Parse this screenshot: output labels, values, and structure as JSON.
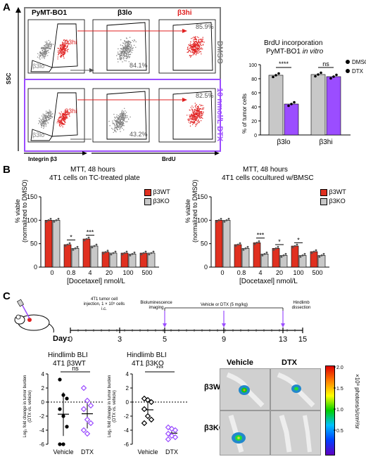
{
  "panelA": {
    "letter": "A",
    "column_titles": [
      "PyMT-BO1",
      "β3lo",
      "β3hi"
    ],
    "row_labels": [
      "DMSO",
      "10 nmol/L DTX"
    ],
    "y_axis": "SSC",
    "x_axis_left": "Integrin β3",
    "x_axis_right": "BrdU",
    "gate_hi": "β3hi",
    "gate_lo": "β3lo",
    "pct": {
      "dmso_lo": "84.1%",
      "dmso_hi": "85.9%",
      "dtx_lo": "43.2%",
      "dtx_hi": "82.5%"
    },
    "colors": {
      "dmso_frame": "#7f7f7f",
      "dtx_frame": "#9b4dff",
      "hi_red": "#e02020",
      "lo_gray": "#808080"
    }
  },
  "brdu_chart": {
    "title1": "BrdU incorporation",
    "title2": "PyMT-BO1",
    "title3": "in vitro",
    "ylabel": "% of tumor cells",
    "legend": [
      "DMSO",
      "DTX"
    ],
    "sig": [
      "****",
      "ns"
    ]
  },
  "panelB": {
    "letter": "B",
    "left_title1": "MTT, 48 hours",
    "left_title2": "4T1 cells on TC-treated plate",
    "right_title1": "MTT, 48 hours",
    "right_title2": "4T1 cells cocultured w/BMSC",
    "ylabel1": "% viable",
    "ylabel2": "(normalized to DMSO)",
    "xlabel": "[Docetaxel] nmol/L",
    "legend": [
      "β3WT",
      "β3KO"
    ],
    "left_sig": [
      "*",
      "***"
    ],
    "right_sig": [
      "***",
      "*",
      "*"
    ]
  },
  "panelC": {
    "letter": "C",
    "timeline": {
      "day_label": "Day:",
      "days": [
        "0",
        "3",
        "5",
        "9",
        "13",
        "15"
      ],
      "ev_injection": "4T1 tumor cell injection, 1 × 10⁵ cells i.c.",
      "ev_imaging": "Bioluminescence imaging",
      "ev_treatment": "Vehicle or DTX (5 mg/kg)",
      "ev_dissection": "Hindlimb dissection"
    },
    "wt_plot": {
      "title1": "Hindlimb BLI",
      "title2": "4T1 β3WT",
      "sig": "ns",
      "ylabel": "Log₂ fold change in tumor burden (DTX vs. vehicle)",
      "xticks": [
        "Vehicle",
        "DTX"
      ]
    },
    "ko_plot": {
      "title1": "Hindlimb BLI",
      "title2": "4T1 β3KO",
      "sig": "***",
      "ylabel": "Log₂ fold change in tumor burden (DTX vs. vehicle)",
      "xticks": [
        "Vehicle",
        "DTX"
      ]
    },
    "images": {
      "col_vehicle": "Vehicle",
      "col_dtx": "DTX",
      "row_wt": "β3WT",
      "row_ko": "β3KO"
    },
    "colorbar": {
      "label": "×10⁸ photons/s/cm²/sr",
      "ticks": [
        "2.0",
        "1.5",
        "1.0",
        "0.5"
      ]
    }
  },
  "chart_data": [
    {
      "type": "bar",
      "title": "BrdU incorporation PyMT-BO1 in vitro",
      "ylabel": "% of tumor cells",
      "categories": [
        "β3lo",
        "β3hi"
      ],
      "series": [
        {
          "name": "DMSO",
          "values": [
            85,
            86
          ]
        },
        {
          "name": "DTX",
          "values": [
            44,
            83
          ]
        }
      ],
      "ylim": [
        0,
        100
      ],
      "yticks": [
        "0",
        "20",
        "40",
        "60",
        "80",
        "100"
      ],
      "colors": [
        "#c8c8c8",
        "#9b4dff"
      ]
    },
    {
      "type": "bar",
      "title": "MTT, 48 hours 4T1 cells on TC-treated plate",
      "xlabel": "[Docetaxel] nmol/L",
      "ylabel": "% viable (normalized to DMSO)",
      "categories": [
        "0",
        "0.8",
        "4",
        "20",
        "100",
        "500"
      ],
      "series": [
        {
          "name": "β3WT",
          "values": [
            100,
            48,
            60,
            32,
            30,
            30
          ]
        },
        {
          "name": "β3KO",
          "values": [
            100,
            40,
            45,
            30,
            28,
            30
          ]
        }
      ],
      "ylim": [
        0,
        150
      ],
      "yticks": [
        "0",
        "50",
        "100",
        "150"
      ],
      "colors": [
        "#e03020",
        "#c8c8c8"
      ]
    },
    {
      "type": "bar",
      "title": "MTT, 48 hours 4T1 cells cocultured w/BMSC",
      "xlabel": "[Docetaxel] nmol/L",
      "ylabel": "% viable (normalized to DMSO)",
      "categories": [
        "0",
        "0.8",
        "4",
        "20",
        "100",
        "500"
      ],
      "series": [
        {
          "name": "β3WT",
          "values": [
            100,
            48,
            52,
            40,
            45,
            33
          ]
        },
        {
          "name": "β3KO",
          "values": [
            100,
            40,
            28,
            25,
            25,
            25
          ]
        }
      ],
      "ylim": [
        0,
        150
      ],
      "yticks": [
        "0",
        "50",
        "100",
        "150"
      ],
      "colors": [
        "#e03020",
        "#c8c8c8"
      ]
    },
    {
      "type": "scatter",
      "title": "Hindlimb BLI 4T1 β3WT",
      "ylabel": "Log₂ fold change in tumor burden (DTX vs. vehicle)",
      "categories": [
        "Vehicle",
        "DTX"
      ],
      "series": [
        {
          "name": "Vehicle",
          "values": [
            3.2,
            1.0,
            0.5,
            -1.0,
            -2.0,
            -3.5,
            -6.0,
            -6.0
          ]
        },
        {
          "name": "DTX",
          "values": [
            2.0,
            0.2,
            -0.5,
            -1.0,
            -2.5,
            -3.0,
            -4.0,
            -4.5
          ]
        }
      ],
      "ylim": [
        -6,
        4
      ],
      "yticks": [
        "4",
        "2",
        "0",
        "-2",
        "-4",
        "-6"
      ]
    },
    {
      "type": "scatter",
      "title": "Hindlimb BLI 4T1 β3KO",
      "ylabel": "Log₂ fold change in tumor burden (DTX vs. vehicle)",
      "categories": [
        "Vehicle",
        "DTX"
      ],
      "series": [
        {
          "name": "Vehicle",
          "values": [
            0.5,
            0.3,
            0.0,
            -1.0,
            -2.0,
            -2.5,
            -3.0
          ]
        },
        {
          "name": "DTX",
          "values": [
            -3.6,
            -3.8,
            -4.0,
            -4.5,
            -4.8,
            -5.0,
            -5.3
          ]
        }
      ],
      "ylim": [
        -6,
        4
      ],
      "yticks": [
        "4",
        "2",
        "0",
        "-2",
        "-4",
        "-6"
      ]
    }
  ]
}
